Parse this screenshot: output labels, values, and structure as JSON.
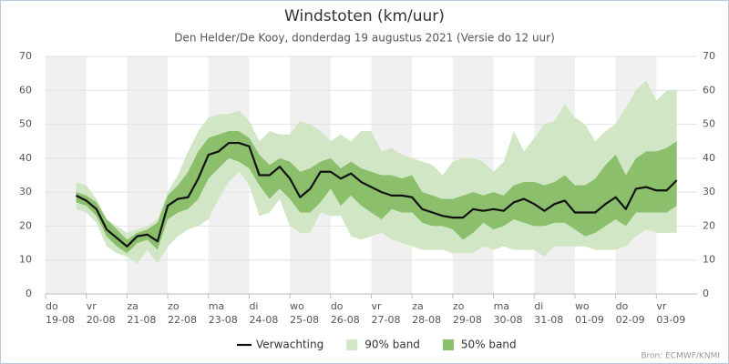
{
  "chart_data": {
    "type": "band-line",
    "title": "Windstoten (km/uur)",
    "subtitle": "Den Helder/De Kooy, donderdag 19 augustus 2021 (Versie do 12 uur)",
    "source": "Bron: ECMWF/KNMI",
    "categories": [
      "do\n19-08",
      null,
      null,
      null,
      "vr\n20-08",
      null,
      null,
      null,
      "za\n21-08",
      null,
      null,
      null,
      "zo\n22-08",
      null,
      null,
      null,
      "ma\n23-08",
      null,
      null,
      null,
      "di\n24-08",
      null,
      null,
      null,
      "wo\n25-08",
      null,
      null,
      null,
      "do\n26-08",
      null,
      null,
      null,
      "vr\n27-08",
      null,
      null,
      null,
      "za\n28-08",
      null,
      null,
      null,
      "zo\n29-08",
      null,
      null,
      null,
      "ma\n30-08",
      null,
      null,
      null,
      "di\n31-08",
      null,
      null,
      null,
      "wo\n01-09",
      null,
      null,
      null,
      "do\n02-09",
      null,
      null,
      null,
      "vr\n03-09",
      null,
      null,
      null
    ],
    "ylim": [
      0,
      70
    ],
    "yticks": [
      0,
      10,
      20,
      30,
      40,
      50,
      60,
      70
    ],
    "grid": true,
    "series": [
      {
        "name": "Verwachting",
        "color": "#111111",
        "kind": "line",
        "values": [
          null,
          null,
          null,
          29,
          27.5,
          25,
          19,
          16.5,
          14,
          17,
          17.5,
          15.5,
          26,
          28,
          28.5,
          34,
          41,
          42,
          44.5,
          44.5,
          43.5,
          35,
          35,
          37.5,
          34,
          28.5,
          31,
          36,
          36,
          34,
          35.5,
          33,
          31.5,
          30,
          29,
          29,
          28.5,
          25,
          24,
          23,
          22.5,
          22.5,
          25,
          24.5,
          25,
          24.5,
          27,
          28,
          26.5,
          24.5,
          26.5,
          27.5,
          24,
          24,
          24,
          26.5,
          28.5,
          25,
          31,
          31.5,
          30.5,
          30.5,
          33.5,
          null
        ]
      },
      {
        "name": "90% band",
        "color": "#d0e6c4",
        "kind": "band",
        "low": [
          null,
          null,
          null,
          25,
          24,
          21,
          14,
          12,
          11,
          9,
          13,
          9,
          14,
          17,
          19,
          20,
          22,
          28,
          33,
          36,
          32,
          23,
          24,
          28,
          20,
          18,
          18,
          24,
          23,
          23,
          17,
          16,
          17,
          18,
          16,
          15,
          14,
          13,
          13,
          13,
          12,
          12,
          12,
          14,
          13,
          14,
          13,
          13,
          13,
          11,
          14,
          14,
          14,
          14,
          13,
          13,
          13,
          14,
          17,
          19,
          18,
          18,
          18,
          null
        ],
        "high": [
          null,
          null,
          null,
          33,
          32,
          28,
          22,
          20,
          18,
          19,
          20,
          22,
          30,
          35,
          42,
          48,
          52,
          53,
          53,
          54,
          51,
          45,
          48,
          47,
          47,
          51,
          50,
          48,
          45,
          47,
          45,
          48,
          48,
          42,
          43,
          41,
          40,
          39,
          38,
          35,
          39,
          40,
          40,
          39,
          36,
          39,
          48,
          42,
          46,
          50,
          51,
          56,
          52,
          50,
          45,
          48,
          50,
          55,
          60,
          63,
          57,
          60,
          60,
          null
        ]
      },
      {
        "name": "50% band",
        "color": "#8bbf6c",
        "kind": "band",
        "low": [
          null,
          null,
          null,
          27,
          26,
          23,
          17,
          14,
          12,
          15,
          16,
          13,
          22,
          24,
          25,
          28,
          34,
          37,
          40,
          39,
          37,
          32,
          28,
          31,
          28,
          24,
          24,
          27,
          31,
          26,
          29,
          26,
          24,
          22,
          25,
          24,
          24,
          21,
          20,
          20,
          19,
          16,
          18,
          21,
          19,
          20,
          22,
          21,
          20,
          20,
          21,
          21,
          19,
          17,
          18,
          20,
          22,
          20,
          24,
          24,
          24,
          24,
          26,
          null
        ],
        "high": [
          null,
          null,
          null,
          30,
          29,
          27,
          22,
          19,
          16,
          18,
          19,
          21,
          29,
          32,
          36,
          42,
          46,
          47,
          48,
          48,
          46,
          41,
          38,
          40,
          39,
          36,
          37,
          39,
          40,
          37,
          39,
          37,
          36,
          35,
          35,
          34,
          35,
          30,
          29,
          28,
          28,
          29,
          30,
          29,
          30,
          29,
          32,
          33,
          33,
          32,
          33,
          35,
          32,
          32,
          34,
          38,
          41,
          35,
          40,
          42,
          42,
          43,
          45,
          null
        ]
      }
    ]
  }
}
